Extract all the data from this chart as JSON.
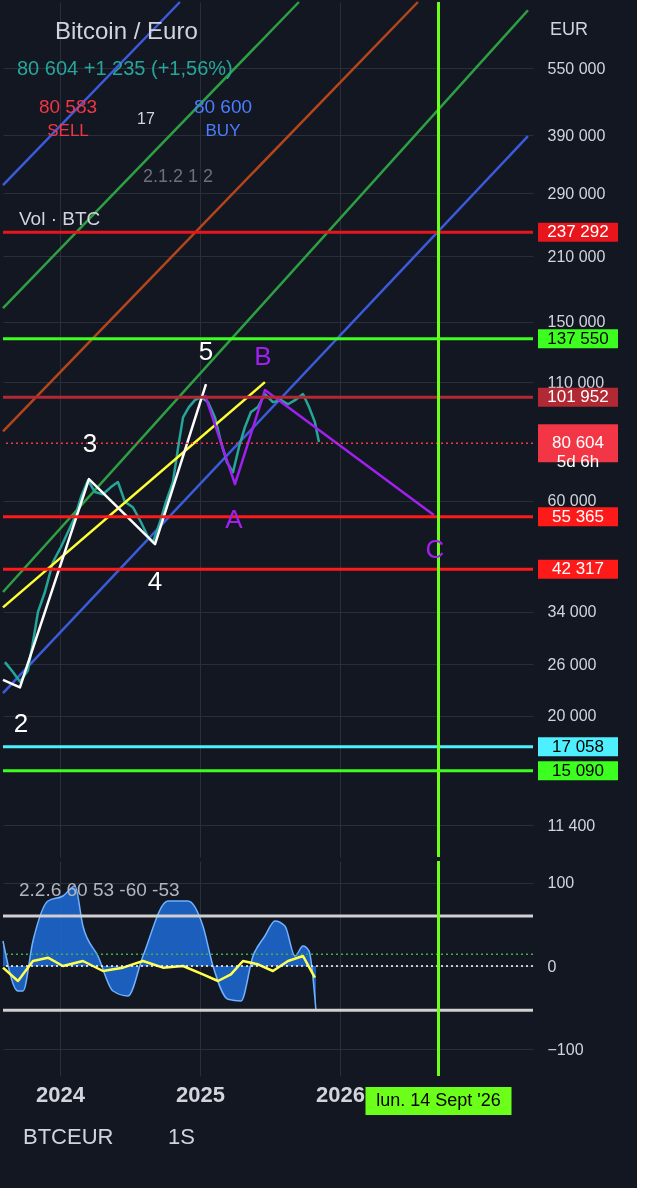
{
  "chart_data": [
    {
      "type": "line",
      "title": "Bitcoin / Euro",
      "subtitle": "80 604  +1 235 (+1,56%)",
      "log": "y",
      "grid": true,
      "marker": "none",
      "tick_labels": "y",
      "xlim": [
        2023.593,
        2027.379
      ],
      "xticks": [
        2024,
        2025,
        2026
      ],
      "ylim": [
        9700,
        771000
      ],
      "yticks": [
        {
          "value": 550000,
          "label": "550 000"
        },
        {
          "value": 390000,
          "label": "390 000"
        },
        {
          "value": 290000,
          "label": "290 000"
        },
        {
          "value": 210000,
          "label": "210 000"
        },
        {
          "value": 150000,
          "label": "150 000"
        },
        {
          "value": 110000,
          "label": "110 000"
        },
        {
          "value": 60000,
          "label": "60 000"
        },
        {
          "value": 34000,
          "label": "34 000"
        },
        {
          "value": 26000,
          "label": "26 000"
        },
        {
          "value": 20000,
          "label": "20 000"
        },
        {
          "value": 11400,
          "label": "11 400"
        }
      ],
      "series": [
        {
          "type": "line",
          "color": "#3b5bdb",
          "x": [
            2023.593,
            2027.343
          ],
          "values": [
            22450,
            388000
          ]
        },
        {
          "type": "line",
          "color": "#2ea043",
          "x": [
            2023.593,
            2027.343
          ],
          "values": [
            37650,
            739000
          ]
        },
        {
          "type": "line",
          "color": "#b5451b",
          "x": [
            2023.593,
            2026.557
          ],
          "values": [
            85700,
            771000
          ]
        },
        {
          "type": "line",
          "color": "#2ea043",
          "x": [
            2023.593,
            2025.707
          ],
          "values": [
            161000,
            771000
          ]
        },
        {
          "type": "line",
          "color": "#3b5bdb",
          "x": [
            2023.593,
            2024.857
          ],
          "values": [
            302000,
            771000
          ]
        },
        {
          "type": "line",
          "color": "#26a69a",
          "x": [
            2023.607,
            2023.664,
            2023.714,
            2023.771,
            2023.807,
            2023.843,
            2023.893,
            2023.95,
            2024.007,
            2024.057,
            2024.107,
            2024.15,
            2024.2,
            2024.25,
            2024.307,
            2024.364,
            2024.414,
            2024.464,
            2024.521,
            2024.579,
            2024.629,
            2024.664,
            2024.714,
            2024.757,
            2024.807,
            2024.85,
            2024.879,
            2024.921,
            2024.964,
            2025.007,
            2025.057,
            2025.107,
            2025.15,
            2025.193,
            2025.236,
            2025.279,
            2025.321,
            2025.364,
            2025.414,
            2025.464,
            2025.521,
            2025.579,
            2025.629,
            2025.679,
            2025.736,
            2025.779,
            2025.821,
            2025.85
          ],
          "values": [
            26300,
            25000,
            23800,
            25200,
            29100,
            34000,
            37700,
            43900,
            47400,
            51200,
            55300,
            61200,
            66700,
            62800,
            62100,
            64400,
            66100,
            59700,
            58100,
            53800,
            49900,
            48600,
            53800,
            59700,
            66100,
            81100,
            92000,
            97000,
            100500,
            102000,
            99500,
            92000,
            81100,
            73100,
            69500,
            79100,
            87500,
            94600,
            97000,
            103700,
            99500,
            100500,
            98400,
            100500,
            103700,
            97000,
            89800,
            81100
          ]
        },
        {
          "type": "line",
          "color": "#ffff33",
          "x": [
            2023.593,
            2025.464
          ],
          "values": [
            34800,
            110200
          ]
        },
        {
          "type": "line",
          "color": "#ffffff",
          "x": [
            2023.593,
            2023.714,
            2024.207,
            2024.679,
            2025.043
          ],
          "values": [
            24000,
            23100,
            67100,
            48100,
            109100
          ]
        },
        {
          "type": "line",
          "color": "#a020f0",
          "x": [
            2025.036,
            2025.25,
            2025.464,
            2026.671
          ],
          "values": [
            103100,
            65400,
            105800,
            55800
          ]
        }
      ],
      "ref_lines": [
        {
          "axis": "y",
          "value": 237292,
          "label": "237 292",
          "color": "#e8161c"
        },
        {
          "axis": "y",
          "value": 137550,
          "label": "137 550",
          "color": "#3cff1f"
        },
        {
          "axis": "y",
          "value": 101952,
          "label": "101 952",
          "color": "#b22833"
        },
        {
          "axis": "y",
          "value": 80604,
          "label": "80 604\n5d 6h",
          "color": "#f23645",
          "line_style": "dotted"
        },
        {
          "axis": "y",
          "value": 55365,
          "label": "55 365",
          "color": "#ff1a1a"
        },
        {
          "axis": "y",
          "value": 42317,
          "label": "42 317",
          "color": "#ff1a1a"
        },
        {
          "axis": "y",
          "value": 17058,
          "label": "17 058",
          "color": "#4ef0ff"
        },
        {
          "axis": "y",
          "value": 15090,
          "label": "15 090",
          "color": "#3cff1f"
        },
        {
          "axis": "x",
          "value": 2026.704,
          "color": "#6cff1a"
        }
      ],
      "annotations": [
        "80 583",
        "SELL",
        "17",
        "80 600",
        "BUY",
        "2.1.2 1 2",
        "Vol · BTC",
        "EUR",
        "5",
        "3",
        "4",
        "2",
        "B",
        "A",
        "C"
      ]
    },
    {
      "type": "line",
      "grid": true,
      "marker": "none",
      "xlim": [
        2023.593,
        2027.379
      ],
      "xticks": [
        2024,
        2025,
        2026
      ],
      "ylim": [
        -132,
        126
      ],
      "yticks": [
        100,
        0,
        {
          "value": -100,
          "label": "−100"
        }
      ],
      "series": [
        {
          "type": "area",
          "color": "#1e6bd6",
          "x": [
            2023.593,
            2023.7,
            2023.736,
            2023.807,
            2023.914,
            2024.021,
            2024.107,
            2024.164,
            2024.271,
            2024.379,
            2024.486,
            2024.593,
            2024.771,
            2024.914,
            2025.021,
            2025.093,
            2025.2,
            2025.293,
            2025.379,
            2025.464,
            2025.536,
            2025.607,
            2025.679,
            2025.736,
            2025.779,
            2025.829
          ],
          "values": [
            30,
            -30,
            -30,
            30,
            78,
            84,
            96,
            48,
            12,
            -30,
            -36,
            12,
            78,
            78,
            48,
            0,
            -40,
            -42,
            12,
            36,
            54,
            48,
            12,
            24,
            18,
            -54
          ]
        },
        {
          "type": "line",
          "color": "#ffff4d",
          "x": [
            2023.593,
            2023.7,
            2023.807,
            2023.914,
            2024.021,
            2024.164,
            2024.307,
            2024.45,
            2024.593,
            2024.736,
            2024.879,
            2025.021,
            2025.129,
            2025.221,
            2025.307,
            2025.414,
            2025.521,
            2025.629,
            2025.736,
            2025.821
          ],
          "values": [
            -2,
            -18,
            6,
            10,
            0,
            6,
            -6,
            -2,
            6,
            -2,
            0,
            -10,
            -18,
            -10,
            6,
            2,
            -6,
            6,
            12,
            -14
          ]
        }
      ],
      "ref_lines": [
        {
          "axis": "y",
          "value": 60,
          "color": "#d0d0d0"
        },
        {
          "axis": "y",
          "value": 14,
          "color": "#3cb043",
          "line_style": "dotted"
        },
        {
          "axis": "y",
          "value": 0,
          "color": "#ffffff",
          "line_style": "dotted"
        },
        {
          "axis": "y",
          "value": -53,
          "color": "#d0d0d0"
        },
        {
          "axis": "x",
          "value": 2026.704,
          "label": "lun. 14 Sept '26",
          "color": "#6cff1a"
        }
      ],
      "annotations": [
        "2.2.6 60 53 -60 -53",
        "BTCEUR",
        "1S"
      ]
    }
  ]
}
